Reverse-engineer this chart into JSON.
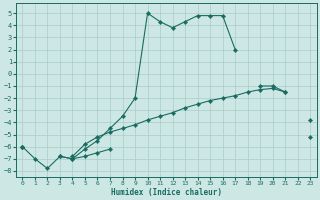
{
  "xlabel": "Humidex (Indice chaleur)",
  "background_color": "#cde8e4",
  "grid_color": "#a8ccc8",
  "line_color": "#1a6b60",
  "x_values": [
    0,
    1,
    2,
    3,
    4,
    5,
    6,
    7,
    8,
    9,
    10,
    11,
    12,
    13,
    14,
    15,
    16,
    17,
    18,
    19,
    20,
    21,
    22,
    23
  ],
  "line1_y": [
    -6.0,
    -7.0,
    -7.8,
    -6.8,
    -7.0,
    -6.8,
    -6.5,
    -6.2,
    null,
    null,
    null,
    null,
    null,
    null,
    null,
    null,
    null,
    null,
    null,
    null,
    null,
    null,
    null,
    null
  ],
  "line2_y": [
    -6.0,
    null,
    null,
    -6.8,
    -7.0,
    -6.2,
    -5.5,
    -4.5,
    -3.5,
    -2.0,
    5.0,
    4.3,
    3.8,
    4.3,
    4.8,
    4.8,
    4.8,
    2.0,
    null,
    -1.0,
    -1.0,
    -1.5,
    null,
    -3.8
  ],
  "line3_y": [
    -6.0,
    null,
    null,
    null,
    -6.8,
    -5.8,
    -5.2,
    -4.8,
    -4.5,
    -4.2,
    -3.8,
    -3.5,
    -3.2,
    -2.8,
    -2.5,
    -2.2,
    -2.0,
    -1.8,
    -1.5,
    -1.3,
    -1.2,
    -1.5,
    null,
    -5.2
  ],
  "line4_y": [
    null,
    null,
    null,
    null,
    null,
    null,
    null,
    null,
    null,
    null,
    null,
    null,
    null,
    null,
    null,
    null,
    null,
    null,
    null,
    null,
    -1.0,
    -1.5,
    null,
    null
  ],
  "ylim": [
    -8.5,
    5.8
  ],
  "xlim": [
    -0.5,
    23.5
  ],
  "yticks": [
    5,
    4,
    3,
    2,
    1,
    0,
    -1,
    -2,
    -3,
    -4,
    -5,
    -6,
    -7,
    -8
  ],
  "xticks": [
    0,
    1,
    2,
    3,
    4,
    5,
    6,
    7,
    8,
    9,
    10,
    11,
    12,
    13,
    14,
    15,
    16,
    17,
    18,
    19,
    20,
    21,
    22,
    23
  ]
}
